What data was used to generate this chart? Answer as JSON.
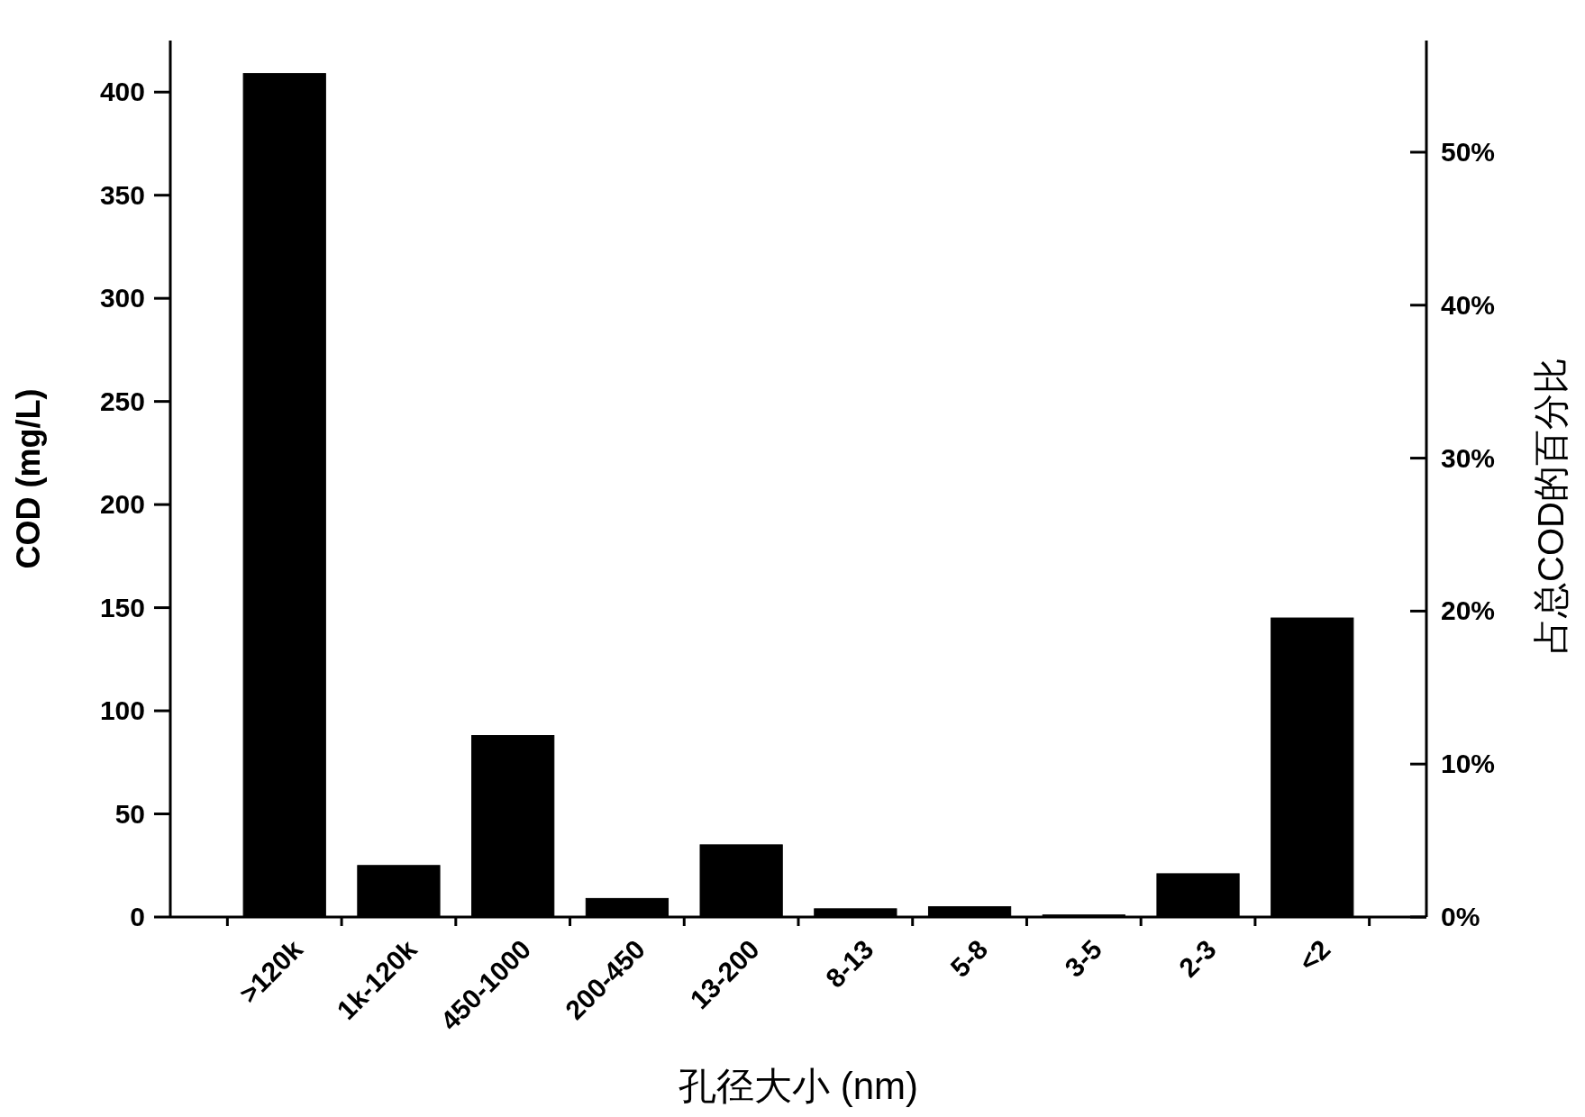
{
  "chart_data": {
    "type": "bar",
    "xlabel": "孔径大小 (nm)",
    "ylabel": "COD (mg/L)",
    "y2label": "占总COD的百分比",
    "categories": [
      ">120k",
      "1k-120k",
      "450-1000",
      "200-450",
      "13-200",
      "8-13",
      "5-8",
      "3-5",
      "2-3",
      "<2"
    ],
    "values": [
      409,
      25,
      88,
      9,
      35,
      4,
      5,
      1,
      21,
      145
    ],
    "color": "#000000",
    "ylim": [
      0,
      425
    ],
    "yticks": [
      0,
      50,
      100,
      150,
      200,
      250,
      300,
      350,
      400
    ],
    "y2lim": [
      0,
      57.3
    ],
    "y2ticks": [
      {
        "value": 0,
        "label": "0%"
      },
      {
        "value": 10,
        "label": "10%"
      },
      {
        "value": 20,
        "label": "20%"
      },
      {
        "value": 30,
        "label": "30%"
      },
      {
        "value": 40,
        "label": "40%"
      },
      {
        "value": 50,
        "label": "50%"
      }
    ]
  }
}
